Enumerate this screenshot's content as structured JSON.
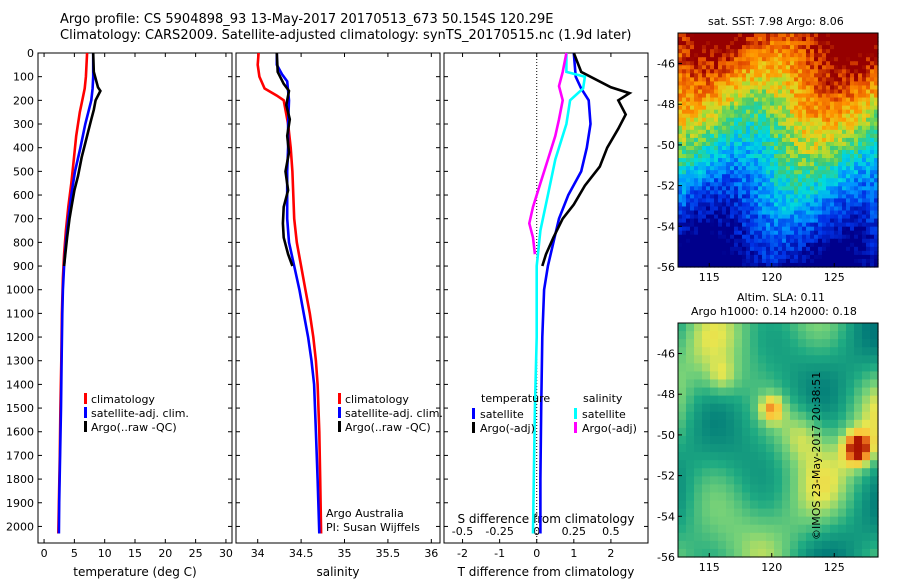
{
  "header": {
    "line1": "Argo profile: CS 5904898_93 13-May-2017 20170513_673 50.154S 120.29E",
    "line2": "Climatology: CARS2009. Satellite-adjusted climatology: synTS_20170515.nc (1.9d later)"
  },
  "credit": {
    "line1": "Argo Australia",
    "line2": "PI: Susan Wijffels"
  },
  "stamp": "©IMOS 23-May-2017 20:38:51",
  "colors": {
    "climatology": "#ff0000",
    "satellite": "#0000ff",
    "argo": "#000000",
    "sal_satellite": "#00ffff",
    "sal_argo": "#ff00ff"
  },
  "chart_data": [
    {
      "type": "line",
      "xlabel": "temperature (deg C)",
      "ylim": [
        2070,
        0
      ],
      "xlim": [
        -1,
        31
      ],
      "xticks": [
        "0",
        "5",
        "10",
        "15",
        "20",
        "25",
        "30"
      ],
      "xtick_values": [
        0,
        5,
        10,
        15,
        20,
        25,
        30
      ],
      "yticks": [
        "0",
        "100",
        "200",
        "300",
        "400",
        "500",
        "600",
        "700",
        "800",
        "900",
        "1000",
        "1100",
        "1200",
        "1300",
        "1400",
        "1500",
        "1600",
        "1700",
        "1800",
        "1900",
        "2000"
      ],
      "ytick_values": [
        0,
        100,
        200,
        300,
        400,
        500,
        600,
        700,
        800,
        900,
        1000,
        1100,
        1200,
        1300,
        1400,
        1500,
        1600,
        1700,
        1800,
        1900,
        2000
      ],
      "legend": [
        "climatology",
        "satellite-adj. clim.",
        "Argo(..raw -QC)"
      ],
      "series": [
        {
          "name": "climatology",
          "color": "#ff0000",
          "points": [
            [
              7.1,
              0
            ],
            [
              7.0,
              50
            ],
            [
              6.9,
              100
            ],
            [
              6.7,
              150
            ],
            [
              6.3,
              200
            ],
            [
              5.9,
              250
            ],
            [
              5.3,
              350
            ],
            [
              4.9,
              450
            ],
            [
              4.5,
              550
            ],
            [
              4.0,
              650
            ],
            [
              3.6,
              750
            ],
            [
              3.3,
              850
            ],
            [
              3.1,
              950
            ],
            [
              2.95,
              1100
            ],
            [
              2.85,
              1300
            ],
            [
              2.7,
              1500
            ],
            [
              2.6,
              1700
            ],
            [
              2.45,
              1900
            ],
            [
              2.35,
              2030
            ]
          ]
        },
        {
          "name": "satellite-adj. clim.",
          "color": "#0000ff",
          "points": [
            [
              8.1,
              0
            ],
            [
              8.1,
              100
            ],
            [
              8.0,
              150
            ],
            [
              7.8,
              200
            ],
            [
              7.3,
              250
            ],
            [
              6.8,
              300
            ],
            [
              6.0,
              400
            ],
            [
              5.1,
              500
            ],
            [
              4.5,
              600
            ],
            [
              4.0,
              700
            ],
            [
              3.6,
              800
            ],
            [
              3.3,
              900
            ],
            [
              3.1,
              1000
            ],
            [
              3.0,
              1100
            ],
            [
              2.9,
              1300
            ],
            [
              2.8,
              1500
            ],
            [
              2.65,
              1700
            ],
            [
              2.5,
              1900
            ],
            [
              2.45,
              2030
            ]
          ]
        },
        {
          "name": "Argo(..raw -QC)",
          "color": "#000000",
          "points": [
            [
              8.1,
              0
            ],
            [
              8.2,
              80
            ],
            [
              8.9,
              145
            ],
            [
              9.3,
              160
            ],
            [
              8.5,
              200
            ],
            [
              8.2,
              240
            ],
            [
              7.8,
              280
            ],
            [
              7.3,
              330
            ],
            [
              6.8,
              380
            ],
            [
              6.2,
              440
            ],
            [
              5.6,
              520
            ],
            [
              5.0,
              580
            ],
            [
              4.6,
              640
            ],
            [
              4.2,
              700
            ],
            [
              3.8,
              780
            ],
            [
              3.5,
              850
            ],
            [
              3.3,
              900
            ]
          ]
        }
      ]
    },
    {
      "type": "line",
      "xlabel": "salinity",
      "ylim": [
        2070,
        0
      ],
      "xlim": [
        33.75,
        36.1
      ],
      "xticks": [
        "34",
        "34.5",
        "35",
        "35.5",
        "36"
      ],
      "xtick_values": [
        34,
        34.5,
        35,
        35.5,
        36
      ],
      "legend": [
        "climatology",
        "satellite-adj. clim.",
        "Argo(..raw -QC)"
      ],
      "series": [
        {
          "name": "climatology",
          "color": "#ff0000",
          "points": [
            [
              34.01,
              0
            ],
            [
              34.0,
              50
            ],
            [
              34.02,
              100
            ],
            [
              34.08,
              150
            ],
            [
              34.22,
              180
            ],
            [
              34.3,
              200
            ],
            [
              34.35,
              300
            ],
            [
              34.38,
              400
            ],
            [
              34.4,
              500
            ],
            [
              34.41,
              600
            ],
            [
              34.42,
              700
            ],
            [
              34.45,
              800
            ],
            [
              34.5,
              900
            ],
            [
              34.55,
              1000
            ],
            [
              34.6,
              1100
            ],
            [
              34.64,
              1200
            ],
            [
              34.67,
              1300
            ],
            [
              34.69,
              1400
            ],
            [
              34.71,
              1600
            ],
            [
              34.72,
              1800
            ],
            [
              34.73,
              2030
            ]
          ]
        },
        {
          "name": "satellite-adj. clim.",
          "color": "#0000ff",
          "points": [
            [
              34.22,
              0
            ],
            [
              34.22,
              50
            ],
            [
              34.28,
              90
            ],
            [
              34.34,
              120
            ],
            [
              34.36,
              200
            ],
            [
              34.35,
              300
            ],
            [
              34.35,
              400
            ],
            [
              34.34,
              500
            ],
            [
              34.34,
              600
            ],
            [
              34.34,
              700
            ],
            [
              34.36,
              800
            ],
            [
              34.42,
              900
            ],
            [
              34.48,
              1000
            ],
            [
              34.53,
              1100
            ],
            [
              34.58,
              1200
            ],
            [
              34.62,
              1300
            ],
            [
              34.65,
              1400
            ],
            [
              34.67,
              1600
            ],
            [
              34.69,
              1800
            ],
            [
              34.71,
              2030
            ]
          ]
        },
        {
          "name": "Argo(..raw -QC)",
          "color": "#000000",
          "points": [
            [
              34.22,
              0
            ],
            [
              34.23,
              80
            ],
            [
              34.3,
              130
            ],
            [
              34.36,
              160
            ],
            [
              34.33,
              220
            ],
            [
              34.37,
              280
            ],
            [
              34.34,
              350
            ],
            [
              34.36,
              420
            ],
            [
              34.32,
              500
            ],
            [
              34.35,
              580
            ],
            [
              34.3,
              650
            ],
            [
              34.29,
              720
            ],
            [
              34.3,
              780
            ],
            [
              34.35,
              850
            ],
            [
              34.4,
              900
            ]
          ]
        }
      ]
    },
    {
      "type": "line",
      "xlabel": "T difference from climatology",
      "xlabel_top": "S difference from climatology",
      "ylim": [
        2070,
        0
      ],
      "xlim": [
        -2.5,
        3.0
      ],
      "xticks": [
        "-2",
        "-1",
        "0",
        "1",
        "2"
      ],
      "xtick_values": [
        -2,
        -1,
        0,
        1,
        2
      ],
      "sticks": [
        "-0.5",
        "-0.25",
        "0",
        "0.25",
        "0.5"
      ],
      "stick_values": [
        -0.5,
        -0.25,
        0,
        0.25,
        0.5
      ],
      "legend_left": {
        "title": "temperature",
        "items": [
          "satellite",
          "Argo(-adj)"
        ]
      },
      "legend_right": {
        "title": "salinity",
        "items": [
          "satellite",
          "Argo(-adj)"
        ]
      },
      "series": [
        {
          "name": "temperature satellite",
          "color": "#0000ff",
          "points": [
            [
              1.0,
              0
            ],
            [
              1.05,
              100
            ],
            [
              1.2,
              150
            ],
            [
              1.4,
              200
            ],
            [
              1.45,
              300
            ],
            [
              1.35,
              400
            ],
            [
              1.2,
              500
            ],
            [
              0.85,
              600
            ],
            [
              0.6,
              700
            ],
            [
              0.45,
              800
            ],
            [
              0.3,
              900
            ],
            [
              0.2,
              1000
            ],
            [
              0.15,
              1200
            ],
            [
              0.12,
              1500
            ],
            [
              0.1,
              1800
            ],
            [
              0.1,
              2030
            ]
          ]
        },
        {
          "name": "temperature Argo(-adj)",
          "color": "#000000",
          "points": [
            [
              1.0,
              0
            ],
            [
              1.2,
              80
            ],
            [
              2.0,
              145
            ],
            [
              2.5,
              170
            ],
            [
              2.2,
              200
            ],
            [
              2.4,
              260
            ],
            [
              2.2,
              320
            ],
            [
              1.9,
              400
            ],
            [
              1.7,
              480
            ],
            [
              1.3,
              560
            ],
            [
              1.0,
              640
            ],
            [
              0.7,
              700
            ],
            [
              0.45,
              780
            ],
            [
              0.25,
              850
            ],
            [
              0.15,
              900
            ]
          ]
        },
        {
          "name": "salinity satellite",
          "color": "#00ffff",
          "points": [
            [
              0.8,
              0
            ],
            [
              0.8,
              80
            ],
            [
              1.3,
              100
            ],
            [
              1.25,
              150
            ],
            [
              0.9,
              200
            ],
            [
              0.8,
              300
            ],
            [
              0.5,
              450
            ],
            [
              0.3,
              600
            ],
            [
              0.1,
              750
            ],
            [
              0.0,
              900
            ],
            [
              0.0,
              1200
            ],
            [
              -0.05,
              1500
            ],
            [
              -0.08,
              1800
            ],
            [
              -0.1,
              2030
            ]
          ]
        },
        {
          "name": "salinity Argo(-adj)",
          "color": "#ff00ff",
          "points": [
            [
              0.8,
              0
            ],
            [
              0.7,
              80
            ],
            [
              0.6,
              140
            ],
            [
              0.7,
              200
            ],
            [
              0.6,
              280
            ],
            [
              0.5,
              350
            ],
            [
              0.3,
              450
            ],
            [
              0.1,
              550
            ],
            [
              -0.1,
              650
            ],
            [
              -0.2,
              720
            ],
            [
              -0.1,
              780
            ],
            [
              -0.05,
              850
            ]
          ]
        }
      ]
    }
  ],
  "maps": [
    {
      "title": "sat. SST: 7.98 Argo: 8.06",
      "xticks": [
        "115",
        "120",
        "125"
      ],
      "xtick_values": [
        115,
        120,
        125
      ],
      "yticks": [
        "-46",
        "-48",
        "-50",
        "-52",
        "-54",
        "-56"
      ],
      "ytick_values": [
        -46,
        -48,
        -50,
        -52,
        -54,
        -56
      ],
      "lon_range": [
        112.5,
        128.5
      ],
      "lat_range": [
        -56,
        -44.5
      ]
    },
    {
      "title_line1": "Altim. SLA: 0.11",
      "title_line2": "Argo h1000: 0.14 h2000: 0.18",
      "xticks": [
        "115",
        "120",
        "125"
      ],
      "xtick_values": [
        115,
        120,
        125
      ],
      "yticks": [
        "-46",
        "-48",
        "-50",
        "-52",
        "-54",
        "-56"
      ],
      "ytick_values": [
        -46,
        -48,
        -50,
        -52,
        -54,
        -56
      ],
      "lon_range": [
        112.5,
        128.5
      ],
      "lat_range": [
        -56,
        -44.5
      ]
    }
  ]
}
